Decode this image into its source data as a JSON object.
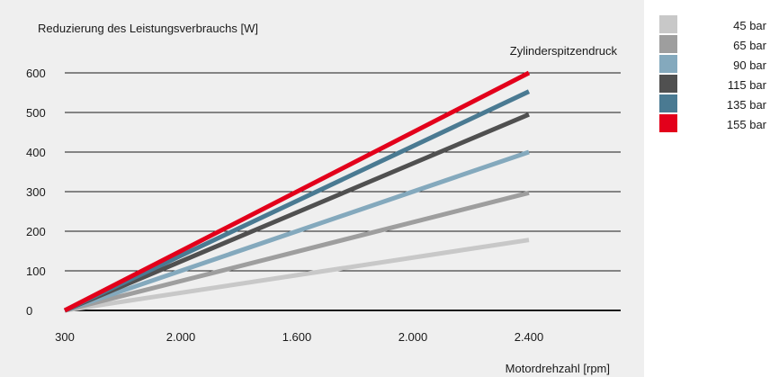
{
  "chart_data": {
    "type": "line",
    "ylabel": "Reduzierung des Leistungsverbrauchs [W]",
    "xlabel": "Motordrehzahl  [rpm]",
    "legend_title": "Zylinderspitzendruck",
    "categories": [
      "300",
      "2.000",
      "1.600",
      "2.000",
      "2.400"
    ],
    "x": [
      0,
      1,
      2,
      3,
      4
    ],
    "ylim": [
      0,
      600
    ],
    "yticks": [
      0,
      100,
      200,
      300,
      400,
      500,
      600
    ],
    "grid": "horizontal",
    "legend_position": "right",
    "series": [
      {
        "name": "45 bar",
        "color": "#c8c8c8",
        "points": [
          [
            0,
            0
          ],
          [
            4,
            178
          ]
        ]
      },
      {
        "name": "65 bar",
        "color": "#9e9e9e",
        "points": [
          [
            0,
            0
          ],
          [
            4,
            297
          ]
        ]
      },
      {
        "name": "90 bar",
        "color": "#84a9bd",
        "points": [
          [
            0,
            0
          ],
          [
            4,
            400
          ]
        ]
      },
      {
        "name": "115 bar",
        "color": "#505050",
        "points": [
          [
            0,
            0
          ],
          [
            4,
            495
          ]
        ]
      },
      {
        "name": "135 bar",
        "color": "#4a7a92",
        "points": [
          [
            0,
            0
          ],
          [
            4,
            553
          ]
        ]
      },
      {
        "name": "155 bar",
        "color": "#e3001b",
        "points": [
          [
            0,
            0
          ],
          [
            4,
            600
          ]
        ]
      }
    ]
  }
}
